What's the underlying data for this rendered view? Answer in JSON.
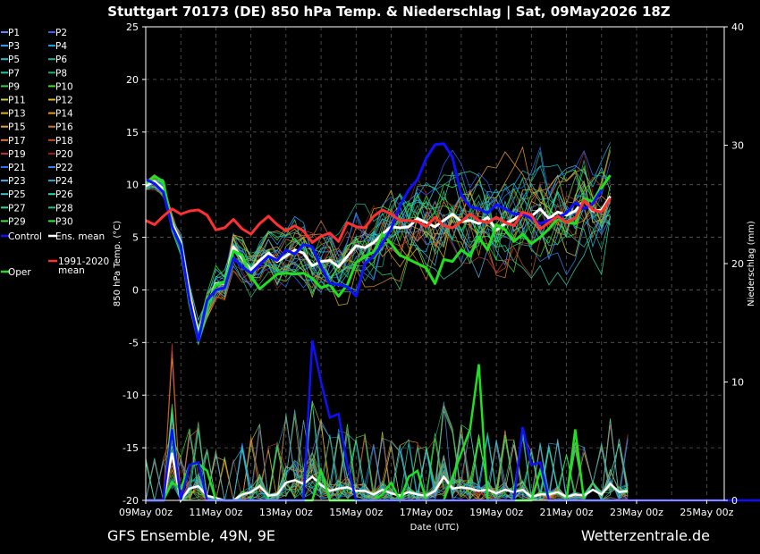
{
  "title": "Stuttgart 70173 (DE)  850 hPa Temp. & Niederschlag | Sat, 09May2026 18Z",
  "footer_left": "GFS Ensemble, 49N, 9E",
  "footer_right": "Wetterzentrale.de",
  "chart_data": {
    "type": "line",
    "xlabel": "Date (UTC)",
    "ylabel": "850 hPa Temp. (°C)",
    "y2label": "Niederschlag (mm)",
    "x_ticks": [
      "09May 00z",
      "11May 00z",
      "13May 00z",
      "15May 00z",
      "17May 00z",
      "19May 00z",
      "21May 00z",
      "23May 00z",
      "25May 00z"
    ],
    "x_start": "2026-05-09T00:00Z",
    "x_end": "2026-05-25T12:00Z",
    "step_hours": 6,
    "ylim": [
      -20,
      25
    ],
    "y_ticks": [
      25,
      20,
      15,
      10,
      5,
      0,
      -5,
      -10,
      -15,
      -20
    ],
    "y2lim": [
      0,
      40
    ],
    "y2_ticks": [
      40,
      30,
      20,
      10,
      0
    ],
    "grid": true,
    "legend_placement": "left",
    "legend_members": [
      {
        "name": "P1",
        "color": "#5a8cff"
      },
      {
        "name": "P2",
        "color": "#3060ff"
      },
      {
        "name": "P3",
        "color": "#3aa0ff"
      },
      {
        "name": "P4",
        "color": "#1ea8e6"
      },
      {
        "name": "P5",
        "color": "#20c0c8"
      },
      {
        "name": "P6",
        "color": "#18b89a"
      },
      {
        "name": "P7",
        "color": "#1ec8a8"
      },
      {
        "name": "P8",
        "color": "#20b070"
      },
      {
        "name": "P9",
        "color": "#30d060"
      },
      {
        "name": "P10",
        "color": "#40e020"
      },
      {
        "name": "P11",
        "color": "#c0d030"
      },
      {
        "name": "P12",
        "color": "#d8c020"
      },
      {
        "name": "P13",
        "color": "#e0b020"
      },
      {
        "name": "P14",
        "color": "#e89a20"
      },
      {
        "name": "P15",
        "color": "#e8a040"
      },
      {
        "name": "P16",
        "color": "#c87828"
      },
      {
        "name": "P17",
        "color": "#e07838"
      },
      {
        "name": "P18",
        "color": "#c05020"
      },
      {
        "name": "P19",
        "color": "#c83030"
      },
      {
        "name": "P20",
        "color": "#a01818"
      },
      {
        "name": "P21",
        "color": "#2a70ff"
      },
      {
        "name": "P22",
        "color": "#3a80e8"
      },
      {
        "name": "P23",
        "color": "#40b0e8"
      },
      {
        "name": "P24",
        "color": "#3aa0d0"
      },
      {
        "name": "P25",
        "color": "#30c8d8"
      },
      {
        "name": "P26",
        "color": "#30d0b0"
      },
      {
        "name": "P27",
        "color": "#30d8a0"
      },
      {
        "name": "P28",
        "color": "#28c080"
      },
      {
        "name": "P29",
        "color": "#40e040"
      },
      {
        "name": "P30",
        "color": "#30f030"
      }
    ],
    "series": [
      {
        "name": "Control",
        "color": "#1010ff",
        "temp": [
          10.5,
          10.1,
          9.3,
          6.0,
          4.2,
          -1.0,
          -4.8,
          -1.0,
          0.0,
          0.2,
          3.0,
          2.2,
          1.6,
          2.4,
          3.2,
          2.8,
          3.8,
          3.4,
          4.3,
          4.1,
          2.2,
          0.6,
          0.5,
          0.3,
          -0.6,
          2.5,
          3.2,
          4.4,
          5.8,
          8.0,
          9.5,
          10.5,
          12.5,
          13.8,
          13.9,
          12.6,
          9.0,
          7.9,
          7.7,
          7.3,
          8.1,
          7.7,
          7.2,
          7.2,
          6.8,
          6.3,
          6.6,
          6.9,
          7.3,
          8.3,
          7.7,
          8.2,
          9.5
        ],
        "precip": [
          0,
          0,
          0,
          6.0,
          0,
          3.0,
          3.2,
          0,
          0,
          0,
          0,
          0,
          0,
          0,
          0,
          0,
          0,
          0,
          0,
          13.5,
          10.0,
          7.0,
          7.3,
          3.0,
          0,
          0,
          0,
          0,
          0,
          0,
          0,
          0,
          0,
          0,
          0,
          0,
          0,
          0,
          0,
          0,
          0,
          0,
          0,
          6.2,
          3.0,
          3.2,
          0,
          0,
          0,
          0,
          0,
          0,
          0,
          0,
          0,
          0,
          0,
          0,
          0,
          0,
          0,
          0,
          0,
          0,
          0,
          0,
          0,
          0,
          0,
          0,
          0,
          0,
          0,
          0,
          0,
          0,
          0,
          0,
          0,
          0,
          0,
          0
        ]
      },
      {
        "name": "Ens. mean",
        "color": "#ffffff",
        "temp": [
          9.9,
          10.3,
          9.6,
          6.3,
          4.5,
          -0.5,
          -4.2,
          -1.5,
          0.6,
          0.6,
          4.1,
          3.0,
          1.9,
          2.8,
          3.5,
          2.7,
          3.2,
          3.8,
          3.5,
          2.3,
          2.7,
          2.8,
          2.2,
          3.2,
          4.2,
          4.0,
          4.5,
          5.3,
          6.0,
          5.9,
          6.0,
          6.8,
          6.4,
          6.0,
          6.6,
          7.2,
          6.5,
          6.6,
          6.3,
          6.9,
          5.7,
          6.3,
          6.7,
          7.2,
          7.0,
          7.7,
          6.8,
          7.4,
          7.1,
          7.5,
          8.5,
          7.5,
          7.6,
          8.9
        ],
        "precip": [
          0,
          0,
          0,
          4.0,
          0,
          1.0,
          1.2,
          0.4,
          0.2,
          0,
          0,
          0.5,
          0.7,
          1.2,
          0.4,
          0.5,
          1.5,
          1.7,
          1.4,
          2.0,
          1.3,
          0.8,
          1.0,
          1.1,
          0.8,
          0.8,
          0.5,
          0.9,
          0.6,
          0.4,
          0.7,
          0.5,
          0.4,
          0.8,
          2.0,
          1.0,
          1.1,
          1.0,
          0.8,
          0.9,
          0.6,
          0.9,
          0.7,
          0.9,
          0.3,
          0.5,
          0.5,
          0.7,
          0.3,
          0.5,
          0.4,
          0.9,
          0.5,
          1.4,
          0.7,
          0.8
        ]
      },
      {
        "name": "Oper",
        "color": "#20e020",
        "temp": [
          10.1,
          10.8,
          10.3,
          6.0,
          4.3,
          -1.3,
          -4.4,
          -1.6,
          0.5,
          0.7,
          3.7,
          3.3,
          1.3,
          0.1,
          0.8,
          1.5,
          1.6,
          1.5,
          1.6,
          1.1,
          0.2,
          0.5,
          -0.6,
          0.5,
          2.6,
          3.2,
          3.6,
          5.3,
          4.4,
          3.3,
          2.9,
          2.5,
          2.1,
          0.6,
          2.9,
          2.7,
          3.8,
          3.2,
          5.0,
          3.8,
          6.2,
          5.7,
          4.6,
          5.3,
          4.4,
          5.0,
          5.8,
          6.8,
          6.4,
          6.3,
          8.7,
          8.4,
          9.7,
          10.9
        ],
        "precip": [
          0,
          0,
          0,
          1.5,
          1.0,
          3.0,
          3.1,
          2.5,
          0,
          0,
          0,
          0,
          0,
          0,
          0,
          0,
          0,
          0,
          0,
          0,
          2.5,
          0,
          0,
          0,
          0,
          0,
          0,
          0.5,
          1.5,
          0,
          2.0,
          2.5,
          0,
          0,
          0,
          2.0,
          4.0,
          6.0,
          11.5,
          0,
          0,
          0,
          0,
          0,
          0,
          2.5,
          0,
          0,
          0,
          6.0,
          0,
          0,
          0,
          0
        ]
      },
      {
        "name": "1991-2020 mean",
        "color": "#ff3030",
        "temp": [
          6.6,
          6.2,
          7.0,
          7.7,
          7.2,
          7.5,
          7.6,
          7.1,
          5.7,
          5.9,
          6.7,
          5.8,
          5.3,
          6.3,
          7.0,
          6.2,
          5.6,
          6.1,
          5.6,
          4.5,
          5.1,
          5.4,
          4.6,
          6.4,
          6.0,
          5.9,
          7.0,
          7.6,
          7.2,
          6.6,
          6.6,
          6.5,
          6.0,
          6.9,
          6.1,
          5.9,
          6.5,
          7.2,
          6.6,
          6.4,
          6.9,
          6.4,
          6.1,
          7.4,
          7.1,
          5.8,
          6.4,
          7.0,
          6.4,
          6.8,
          8.5,
          7.6,
          7.4,
          8.7
        ]
      }
    ]
  }
}
